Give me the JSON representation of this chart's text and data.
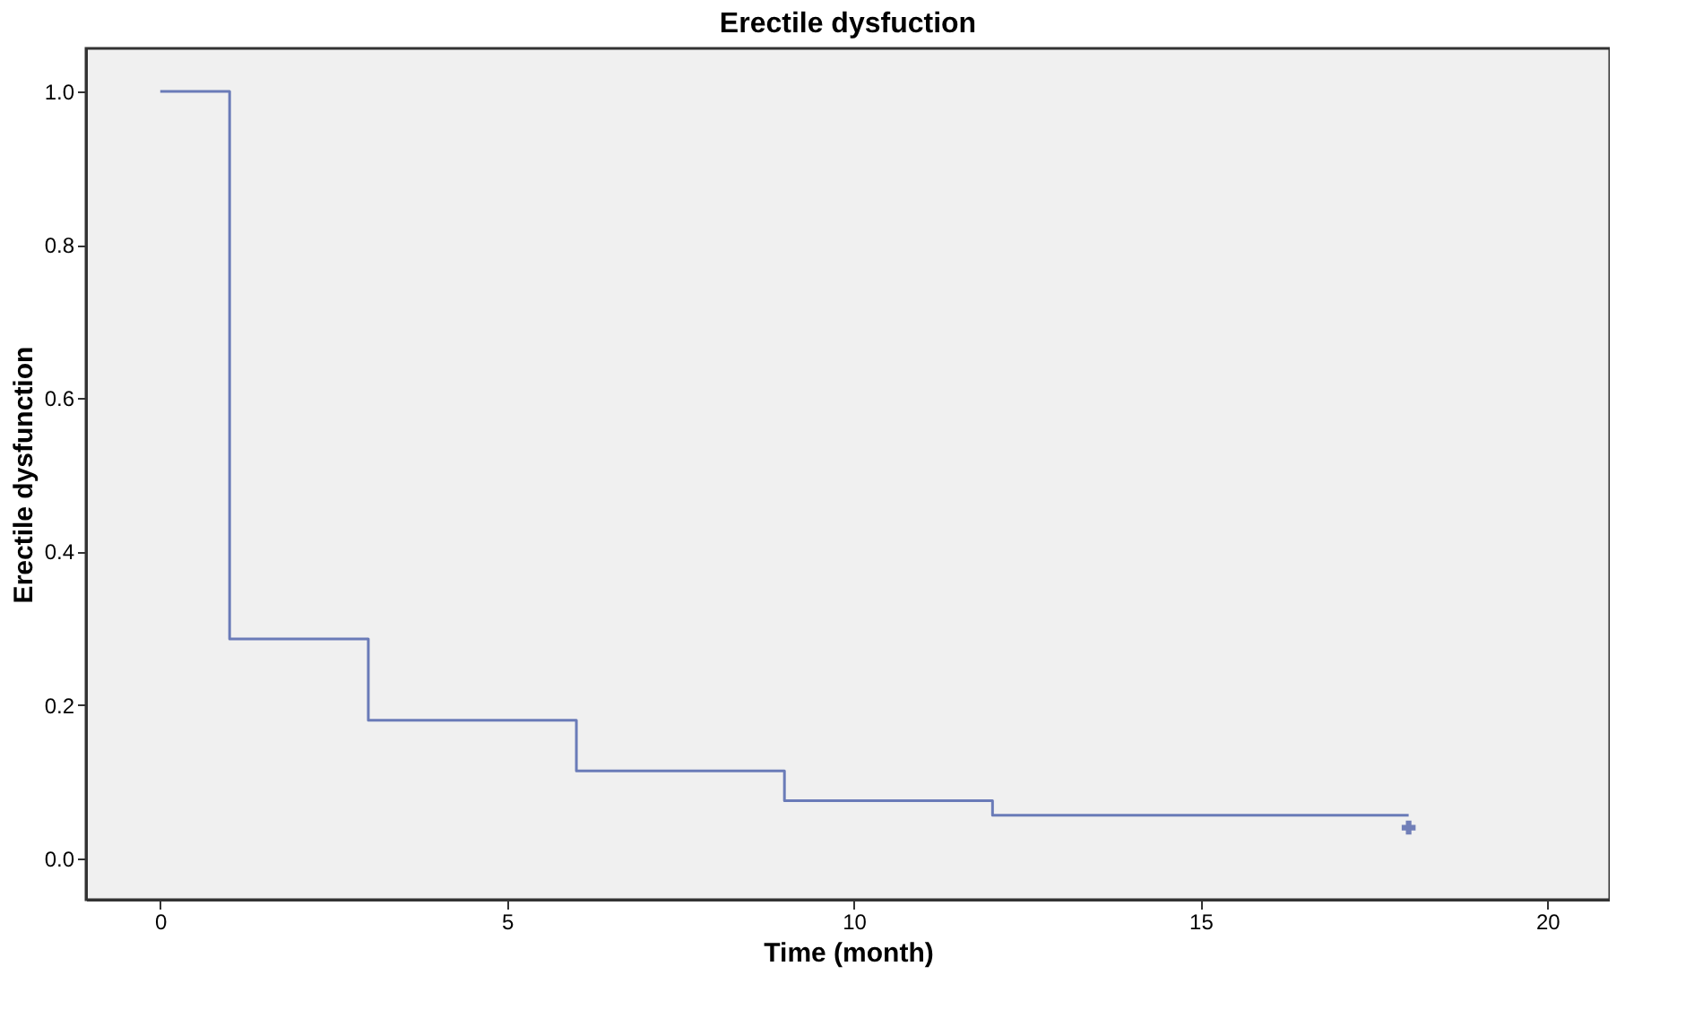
{
  "chart_data": {
    "type": "step",
    "title": "Erectile dysfuction",
    "xlabel": "Time (month)",
    "ylabel": "Erectile dysfunction",
    "series": [
      {
        "color": "#6a7bb8",
        "x": [
          0,
          1,
          3,
          6,
          9,
          12,
          18
        ],
        "values": [
          1.0,
          0.286,
          0.18,
          0.114,
          0.075,
          0.056,
          0.056
        ]
      },
      {
        "type": "scatter",
        "color": "#3a4fa0",
        "marker": "cross",
        "x": [
          18
        ],
        "values": [
          0.04
        ]
      }
    ],
    "xlim": [
      -1.07,
      20.9
    ],
    "xticks": [
      0,
      5,
      10,
      15,
      20
    ],
    "ylim": [
      -0.054,
      1.056
    ],
    "yticks": [
      {
        "value": 0,
        "label": "0.0"
      },
      {
        "value": 0.2,
        "label": "0.2"
      },
      {
        "value": 0.4,
        "label": "0.4"
      },
      {
        "value": 0.6,
        "label": "0.6"
      },
      {
        "value": 0.8,
        "label": "0.8"
      },
      {
        "value": 1,
        "label": "1.0"
      }
    ],
    "grid": false,
    "line_style": "solid"
  }
}
